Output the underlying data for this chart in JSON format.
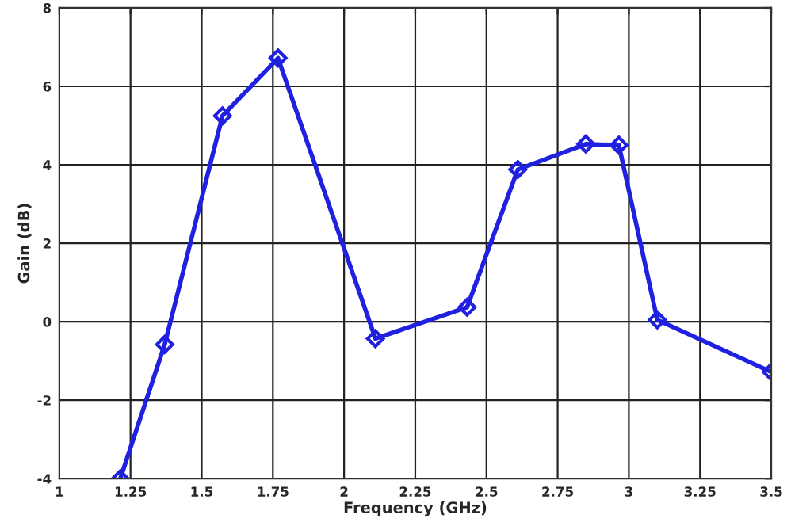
{
  "chart_data": {
    "type": "line",
    "xlabel": "Frequency (GHz)",
    "ylabel": "Gain (dB)",
    "x": [
      1.214,
      1.37,
      1.573,
      1.768,
      2.11,
      2.432,
      2.61,
      2.849,
      2.965,
      3.1,
      3.5
    ],
    "series": [
      {
        "color": "#2020e0",
        "values": [
          -4,
          -0.58,
          5.25,
          6.72,
          -0.43,
          0.37,
          3.88,
          4.53,
          4.5,
          0.05,
          -1.28
        ]
      }
    ],
    "xlim": [
      1,
      3.5
    ],
    "xticks": [
      1,
      1.25,
      1.5,
      1.75,
      2,
      2.25,
      2.5,
      2.75,
      3,
      3.25,
      3.5
    ],
    "ylim": [
      -4,
      8
    ],
    "yticks": [
      -4,
      -2,
      0,
      2,
      4,
      6,
      8
    ],
    "grid": true,
    "marker": "diamond",
    "line_style": "solid"
  }
}
